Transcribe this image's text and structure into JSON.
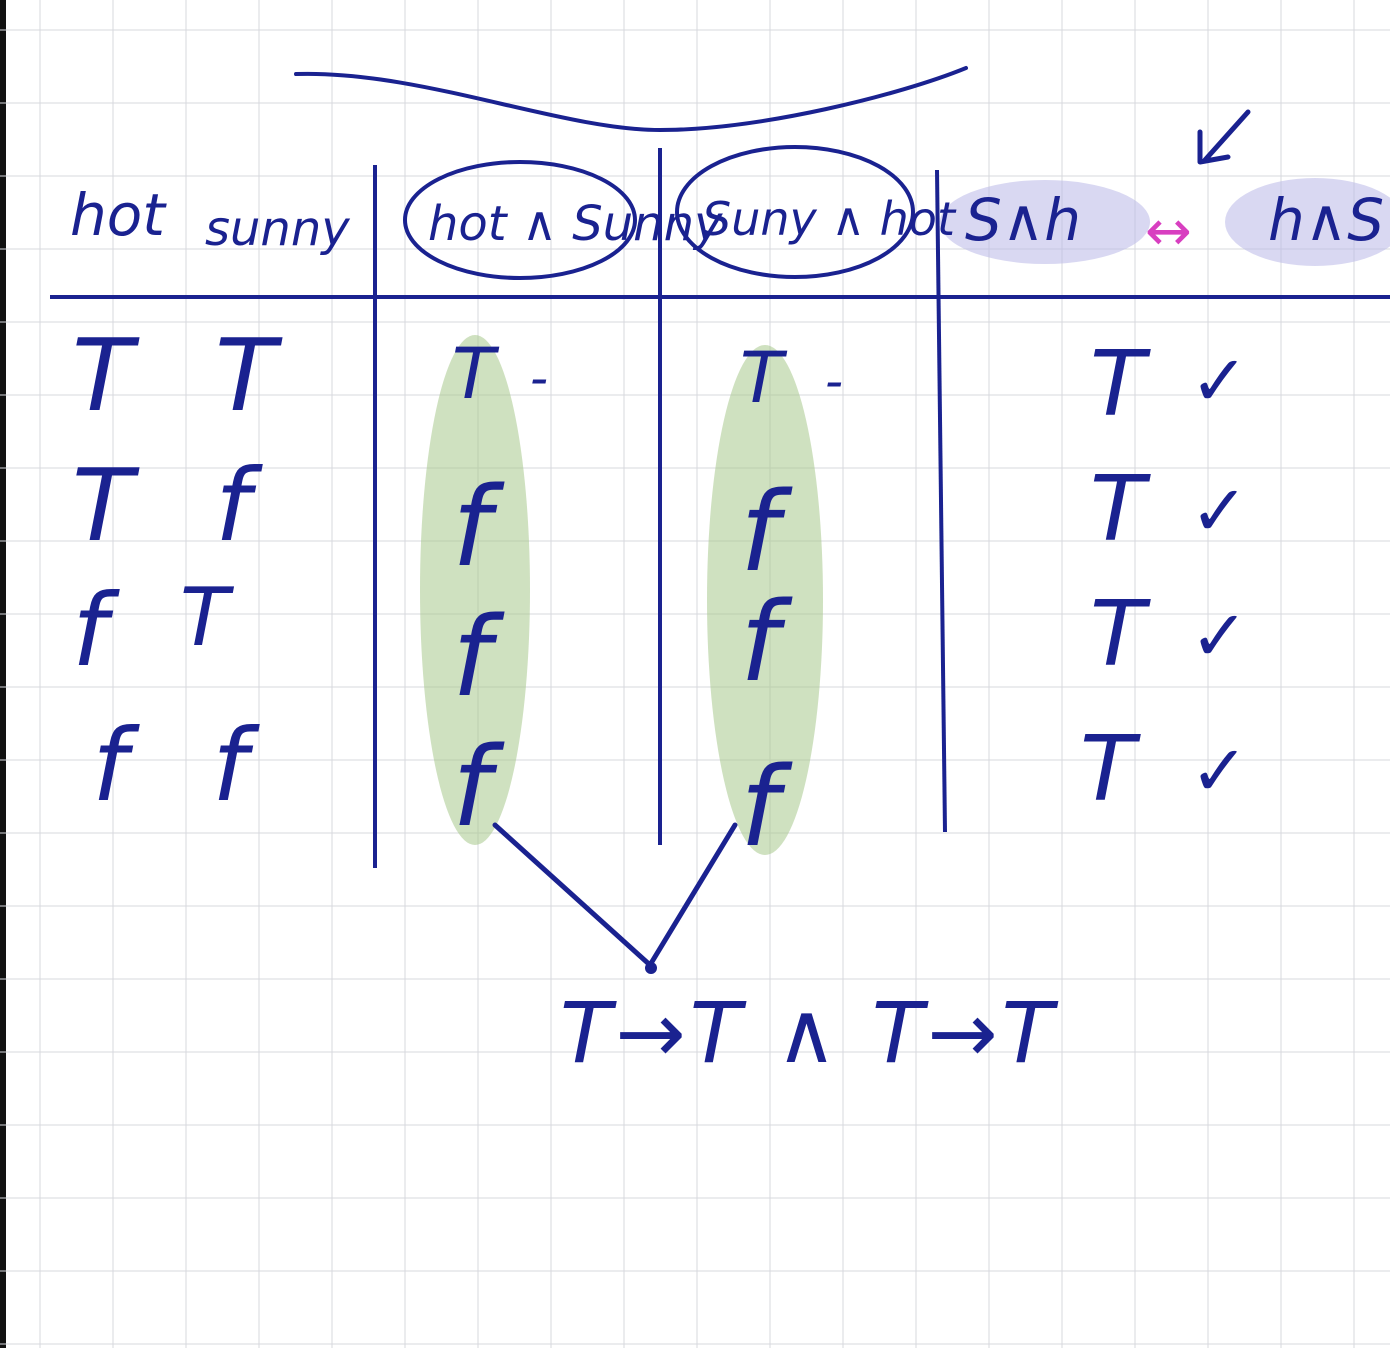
{
  "header": {
    "col_hot": "hot",
    "col_sunny": "sunny",
    "col_hot_and_sunny": "hot ∧ Sunny",
    "col_sunny_and_hot": "Suny ∧ hot",
    "col_s_and_h": "S∧h",
    "equiv_symbol": "↔",
    "col_h_and_s": "h∧S"
  },
  "rows": [
    {
      "hot": "T",
      "sunny": "T",
      "hot_and_sunny": "T",
      "sunny_and_hot": "T",
      "equiv": "T"
    },
    {
      "hot": "T",
      "sunny": "f",
      "hot_and_sunny": "f",
      "sunny_and_hot": "f",
      "equiv": "T"
    },
    {
      "hot": "f",
      "sunny": "T",
      "hot_and_sunny": "f",
      "sunny_and_hot": "f",
      "equiv": "T"
    },
    {
      "hot": "f",
      "sunny": "f",
      "hot_and_sunny": "f",
      "sunny_and_hot": "f",
      "equiv": "T"
    }
  ],
  "checkmark": "✓",
  "dash": "-",
  "bottom_expression": "T→T ∧ T→T",
  "colors": {
    "ink": "#1a2290",
    "pink": "#d83fc0",
    "green_highlight": "#a7c98d",
    "lavender_highlight": "#b9b8e8",
    "grid": "#d7d9de"
  }
}
